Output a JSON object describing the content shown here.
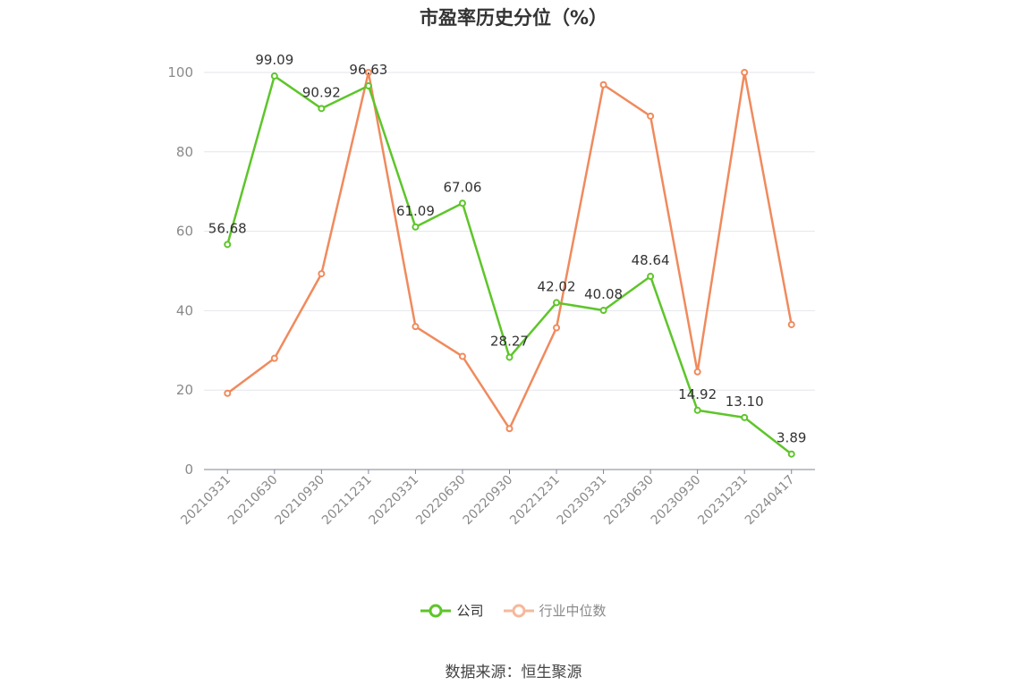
{
  "chart_data": {
    "type": "line",
    "title": "市盈率历史分位（%）",
    "categories": [
      "20210331",
      "20210630",
      "20210930",
      "20211231",
      "20220331",
      "20220630",
      "20220930",
      "20221231",
      "20230331",
      "20230630",
      "20230930",
      "20231231",
      "20240417"
    ],
    "ylim": [
      0,
      100
    ],
    "yticks": [
      0,
      20,
      40,
      60,
      80,
      100
    ],
    "grid": true,
    "legend_position": "bottom",
    "series": [
      {
        "name": "公司",
        "color": "#5ec52a",
        "values": [
          56.68,
          99.09,
          90.92,
          96.63,
          61.09,
          67.06,
          28.27,
          42.02,
          40.08,
          48.64,
          14.92,
          13.1,
          3.89
        ],
        "labels": [
          "56.68",
          "99.09",
          "90.92",
          "96.63",
          "61.09",
          "67.06",
          "28.27",
          "42.02",
          "40.08",
          "48.64",
          "14.92",
          "13.10",
          "3.89"
        ]
      },
      {
        "name": "行业中位数",
        "color": "#f08a5d",
        "values": [
          19.2,
          28.0,
          49.3,
          100.0,
          36.0,
          28.5,
          10.3,
          35.7,
          96.9,
          89.0,
          24.6,
          100.0,
          36.5
        ]
      }
    ]
  },
  "legend": {
    "company": "公司",
    "industry": "行业中位数"
  },
  "source": "数据来源：恒生聚源"
}
